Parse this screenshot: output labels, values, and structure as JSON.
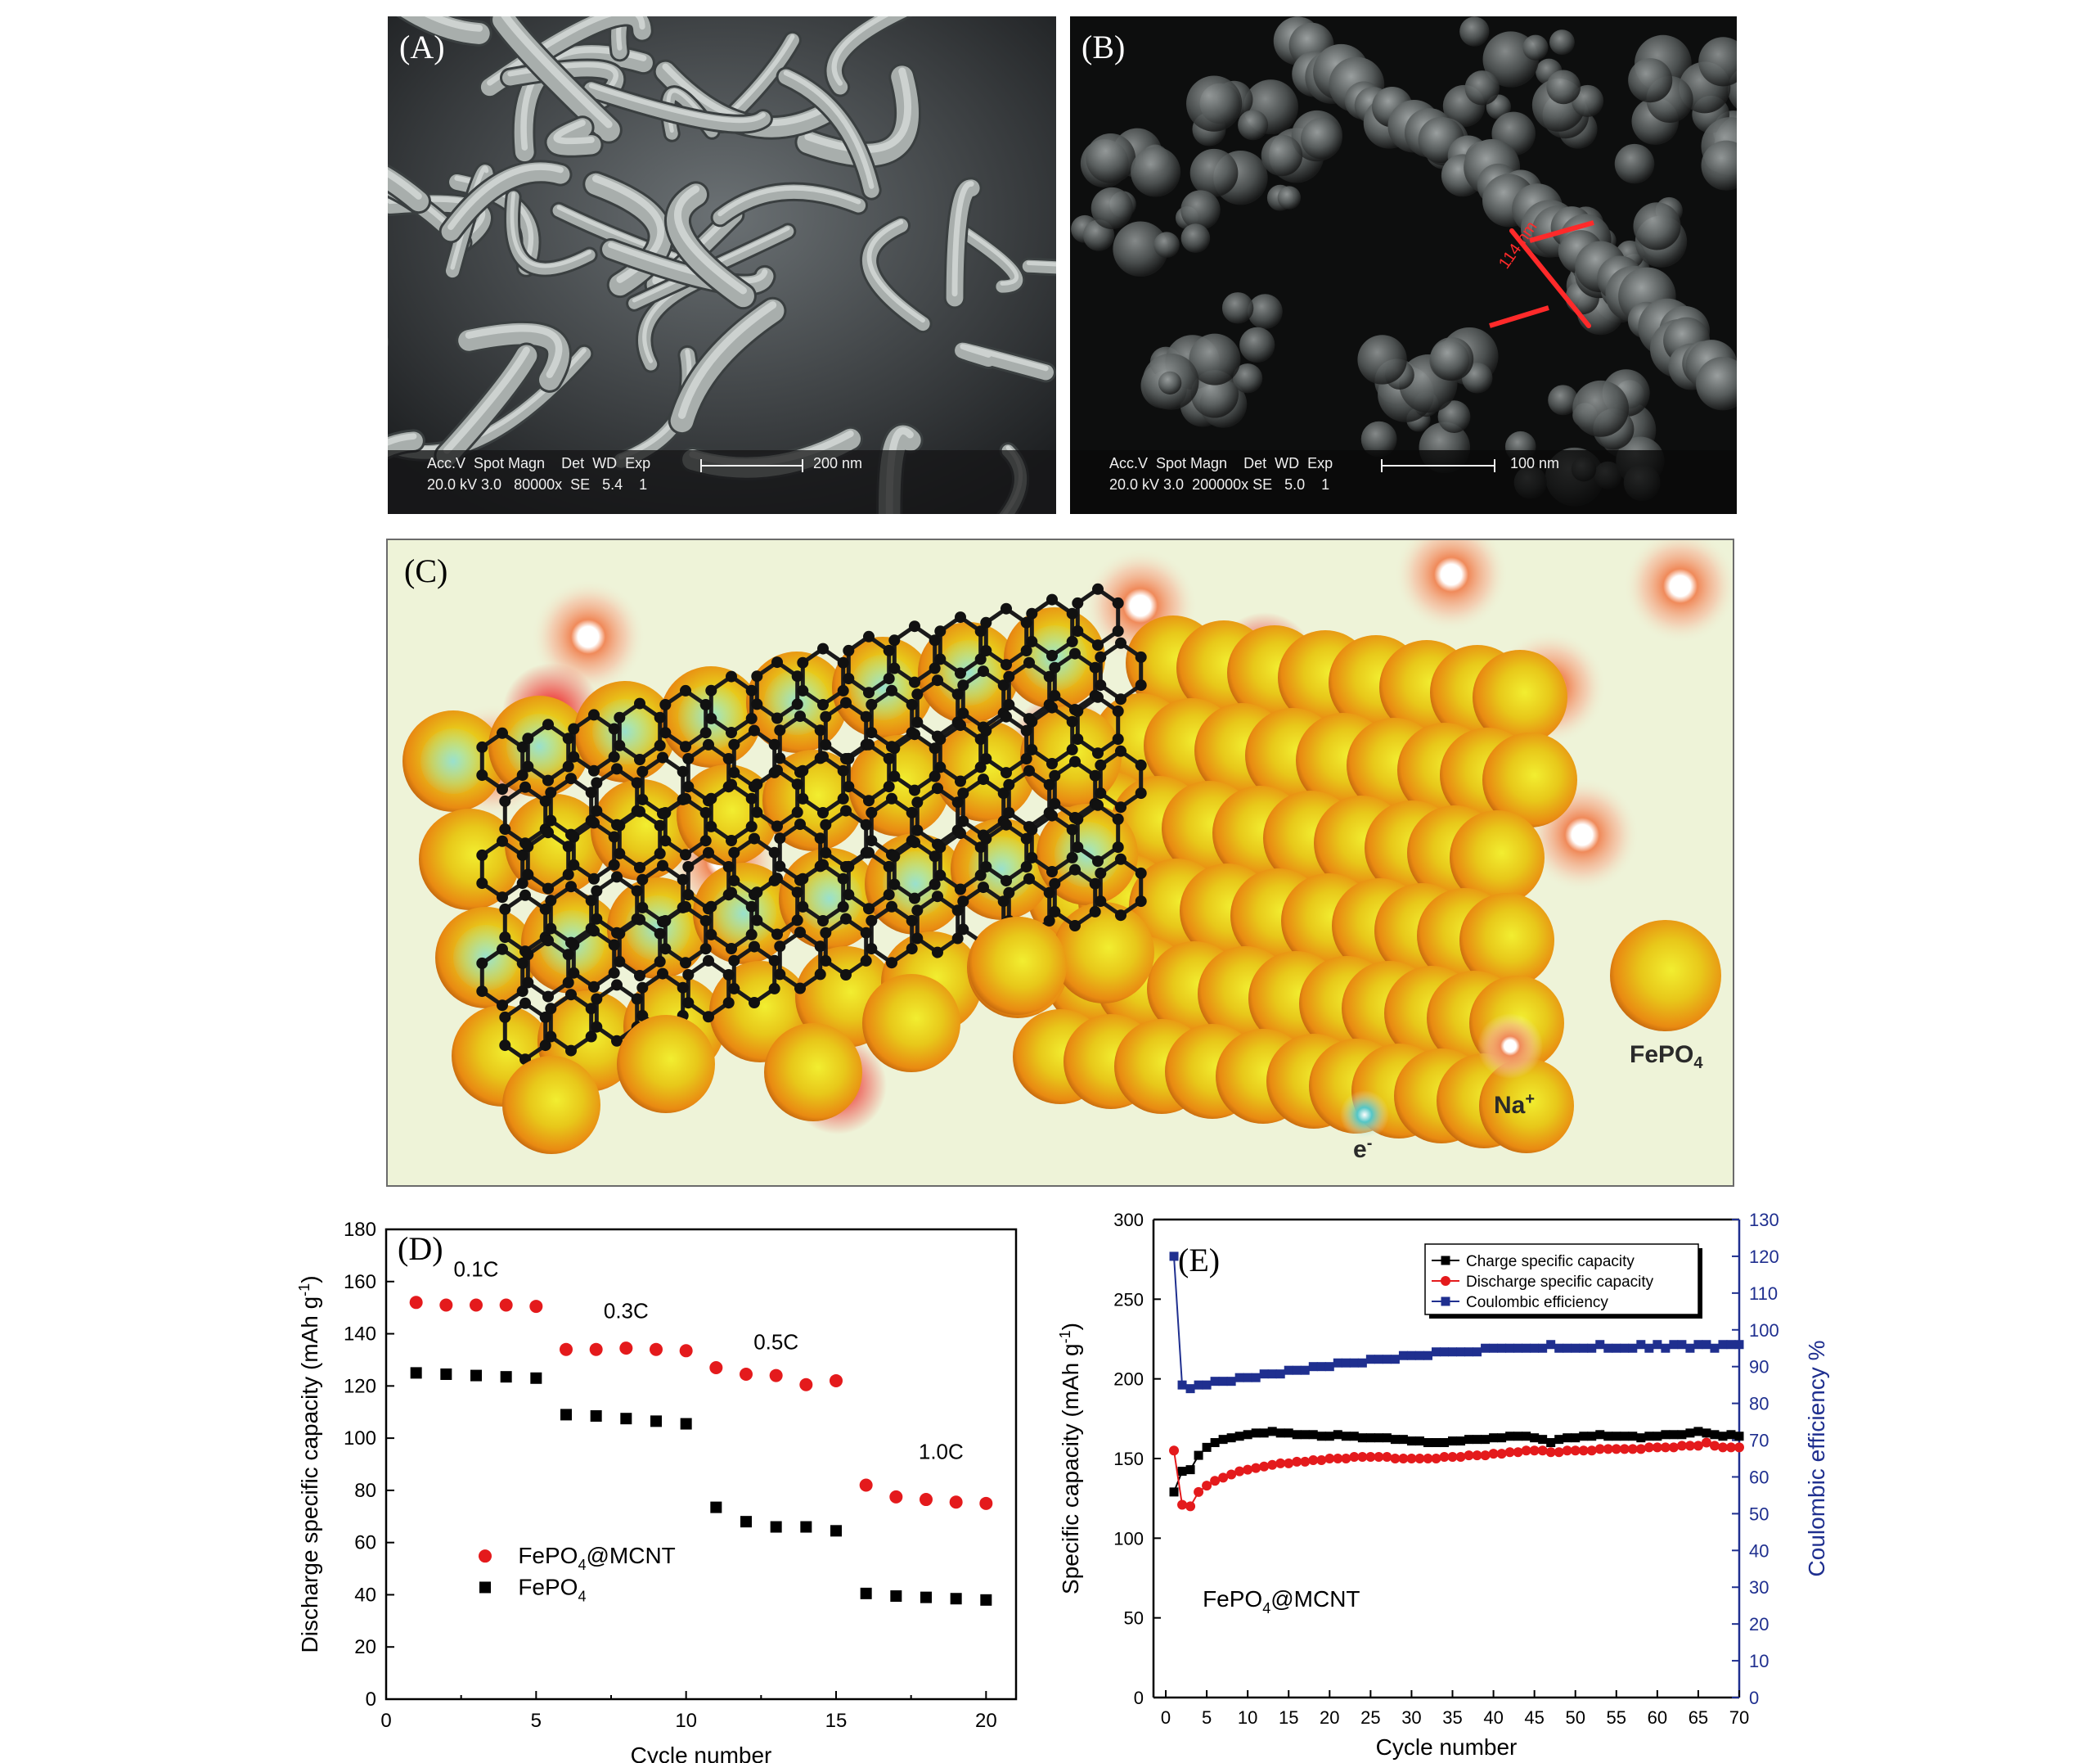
{
  "panels": {
    "a": {
      "label": "(A)",
      "info_header": "Acc.V  Spot Magn    Det  WD  Exp",
      "info_values": "20.0 kV 3.0   80000x  SE   5.4    1",
      "scale_text": "200 nm"
    },
    "b": {
      "label": "(B)",
      "info_header": "Acc.V  Spot Magn    Det  WD  Exp",
      "info_values": "20.0 kV 3.0  200000x SE   5.0    1",
      "scale_text": "100 nm",
      "measure_text": "114 nm"
    },
    "c": {
      "label": "(C)",
      "legend": {
        "particle": "FePO",
        "particle_sub": "4",
        "ion": "Na",
        "ion_sup": "+",
        "electron": "e",
        "electron_sup": "-"
      }
    },
    "d": {
      "label": "(D)"
    },
    "e": {
      "label": "(E)"
    }
  },
  "colors": {
    "fepo4_mcnt": "#e41a1c",
    "fepo4": "#000000",
    "coulombic": "#1f2f8f",
    "right_axis": "#1f2f8f",
    "particle_yellow": "#e8c81a",
    "ion_glow": "#e8402a",
    "background_c": "#eef3d8"
  },
  "chart_data": [
    {
      "id": "D",
      "type": "scatter",
      "xlabel": "Cycle number",
      "ylabel": "Discharge specific capacity (mAh g",
      "ylabel_sup": "-1",
      "ylabel_end": ")",
      "xlim": [
        0,
        21
      ],
      "ylim": [
        0,
        180
      ],
      "xticks": [
        0,
        5,
        10,
        15,
        20
      ],
      "yticks": [
        0,
        20,
        40,
        60,
        80,
        100,
        120,
        140,
        160,
        180
      ],
      "annotations": [
        "0.1C",
        "0.3C",
        "0.5C",
        "1.0C"
      ],
      "legend": [
        {
          "name": "FePO",
          "sub": "4",
          "tail": "@MCNT"
        },
        {
          "name": "FePO",
          "sub": "4",
          "tail": ""
        }
      ],
      "series": [
        {
          "name": "FePO4@MCNT",
          "marker": "circle",
          "x": [
            1,
            2,
            3,
            4,
            5,
            6,
            7,
            8,
            9,
            10,
            11,
            12,
            13,
            14,
            15,
            16,
            17,
            18,
            19,
            20
          ],
          "values": [
            152,
            151,
            151,
            151,
            150.5,
            134,
            134,
            134.5,
            134,
            133.5,
            127,
            124.5,
            124,
            120.5,
            122,
            82,
            77.5,
            76.5,
            75.5,
            75
          ]
        },
        {
          "name": "FePO4",
          "marker": "square",
          "x": [
            1,
            2,
            3,
            4,
            5,
            6,
            7,
            8,
            9,
            10,
            11,
            12,
            13,
            14,
            15,
            16,
            17,
            18,
            19,
            20
          ],
          "values": [
            125,
            124.5,
            124,
            123.5,
            123,
            109,
            108.5,
            107.5,
            106.5,
            105.5,
            73.5,
            68,
            66,
            66,
            64.5,
            40.5,
            39.5,
            39,
            38.5,
            38
          ]
        }
      ]
    },
    {
      "id": "E",
      "type": "line",
      "xlabel": "Cycle number",
      "ylabel": "Specific capacity (mAh g",
      "ylabel_sup": "-1",
      "ylabel_end": ")",
      "y2label": "Coulombic efficiency %",
      "annotation": {
        "name": "FePO",
        "sub": "4",
        "tail": "@MCNT"
      },
      "xlim": [
        -1.5,
        70
      ],
      "ylim": [
        0,
        300
      ],
      "y2lim": [
        0,
        130
      ],
      "xticks": [
        0,
        5,
        10,
        15,
        20,
        25,
        30,
        35,
        40,
        45,
        50,
        55,
        60,
        65,
        70
      ],
      "yticks": [
        0,
        50,
        100,
        150,
        200,
        250,
        300
      ],
      "y2ticks": [
        0,
        10,
        20,
        30,
        40,
        50,
        60,
        70,
        80,
        90,
        100,
        110,
        120,
        130
      ],
      "legend": [
        "Charge specific capacity",
        "Discharge specific capacity",
        "Coulombic efficiency"
      ],
      "x": [
        1,
        2,
        3,
        4,
        5,
        6,
        7,
        8,
        9,
        10,
        11,
        12,
        13,
        14,
        15,
        16,
        17,
        18,
        19,
        20,
        21,
        22,
        23,
        24,
        25,
        26,
        27,
        28,
        29,
        30,
        31,
        32,
        33,
        34,
        35,
        36,
        37,
        38,
        39,
        40,
        41,
        42,
        43,
        44,
        45,
        46,
        47,
        48,
        49,
        50,
        51,
        52,
        53,
        54,
        55,
        56,
        57,
        58,
        59,
        60,
        61,
        62,
        63,
        64,
        65,
        66,
        67,
        68,
        69,
        70
      ],
      "series": [
        {
          "name": "Charge specific capacity",
          "marker": "square",
          "axis": "left",
          "values": [
            129,
            142,
            143,
            152,
            157,
            160,
            162,
            163,
            164,
            165,
            166,
            166,
            167,
            166,
            166,
            165,
            165,
            165,
            164,
            164,
            165,
            164,
            164,
            163,
            163,
            163,
            163,
            162,
            162,
            161,
            161,
            160,
            160,
            160,
            161,
            161,
            162,
            162,
            162,
            163,
            163,
            164,
            164,
            164,
            163,
            162,
            160,
            162,
            163,
            163,
            164,
            164,
            165,
            164,
            164,
            164,
            164,
            163,
            164,
            164,
            165,
            165,
            165,
            166,
            167,
            166,
            165,
            164,
            165,
            164
          ]
        },
        {
          "name": "Discharge specific capacity",
          "marker": "circle",
          "axis": "left",
          "values": [
            155,
            121,
            120,
            129,
            133,
            136,
            138,
            140,
            142,
            143,
            144,
            145,
            146,
            147,
            147,
            148,
            148,
            149,
            149,
            150,
            150,
            150,
            151,
            151,
            151,
            151,
            151,
            150,
            150,
            150,
            150,
            150,
            150,
            151,
            151,
            151,
            152,
            152,
            152,
            153,
            153,
            154,
            154,
            155,
            155,
            155,
            154,
            154,
            155,
            155,
            155,
            155,
            156,
            156,
            156,
            156,
            156,
            156,
            157,
            157,
            157,
            157,
            158,
            158,
            158,
            160,
            158,
            157,
            157,
            157
          ]
        },
        {
          "name": "Coulombic efficiency",
          "marker": "square",
          "axis": "right",
          "values": [
            120,
            85,
            84,
            85,
            85,
            86,
            86,
            86,
            87,
            87,
            87,
            88,
            88,
            88,
            89,
            89,
            89,
            90,
            90,
            90,
            91,
            91,
            91,
            91,
            92,
            92,
            92,
            92,
            93,
            93,
            93,
            93,
            94,
            94,
            94,
            94,
            94,
            94,
            95,
            95,
            95,
            95,
            95,
            95,
            95,
            95,
            96,
            95,
            95,
            95,
            95,
            95,
            96,
            95,
            95,
            95,
            95,
            96,
            95,
            96,
            95,
            96,
            96,
            95,
            96,
            96,
            95,
            96,
            96,
            96
          ]
        }
      ]
    }
  ]
}
